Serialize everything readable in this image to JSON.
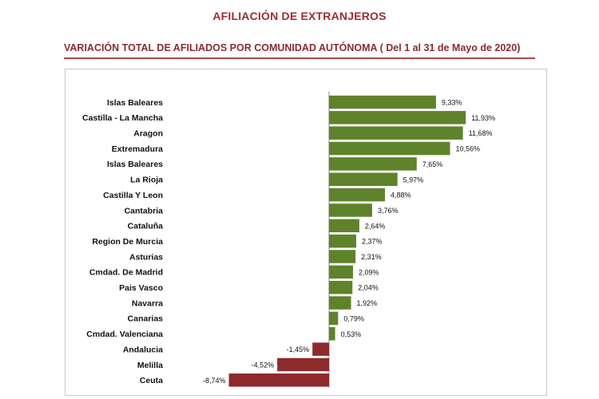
{
  "page": {
    "title": "AFILIACIÓN DE  EXTRANJEROS",
    "subtitle": "VARIACIÓN  TOTAL DE AFILIADOS POR COMUNIDAD AUTÓNOMA ( Del 1 al 31 de Mayo de 2020)"
  },
  "colors": {
    "positive": "#5e832b",
    "negative": "#8d2a2c",
    "title": "#9b2d34"
  },
  "chart_data": {
    "type": "bar",
    "orientation": "horizontal",
    "title": "VARIACIÓN  TOTAL DE AFILIADOS POR COMUNIDAD AUTÓNOMA ( Del 1 al 31 de Mayo de 2020)",
    "xlabel": "",
    "ylabel": "",
    "grid": false,
    "legend": "none",
    "xlim": [
      -10,
      14
    ],
    "categories": [
      "Islas Baleares",
      "Castilla - La Mancha",
      "Aragon",
      "Extremadura",
      "Islas Baleares",
      "La Rioja",
      "Castilla Y Leon",
      "Cantabria",
      "Cataluña",
      "Region De Murcia",
      "Asturias",
      "Cmdad. De Madrid",
      "Pais Vasco",
      "Navarra",
      "Canarias",
      "Cmdad. Valenciana",
      "Andalucia",
      "Melilla",
      "Ceuta"
    ],
    "values": [
      9.33,
      11.93,
      11.68,
      10.56,
      7.65,
      5.97,
      4.88,
      3.76,
      2.64,
      2.37,
      2.31,
      2.09,
      2.04,
      1.92,
      0.79,
      0.53,
      -1.45,
      -4.52,
      -8.74
    ],
    "value_labels": [
      "9,33%",
      "11,93%",
      "11,68%",
      "10,56%",
      "7,65%",
      "5,97%",
      "4,88%",
      "3,76%",
      "2,64%",
      "2,37%",
      "2,31%",
      "2,09%",
      "2,04%",
      "1,92%",
      "0,79%",
      "0,53%",
      "-1,45%",
      "-4,52%",
      "-8,74%"
    ]
  }
}
